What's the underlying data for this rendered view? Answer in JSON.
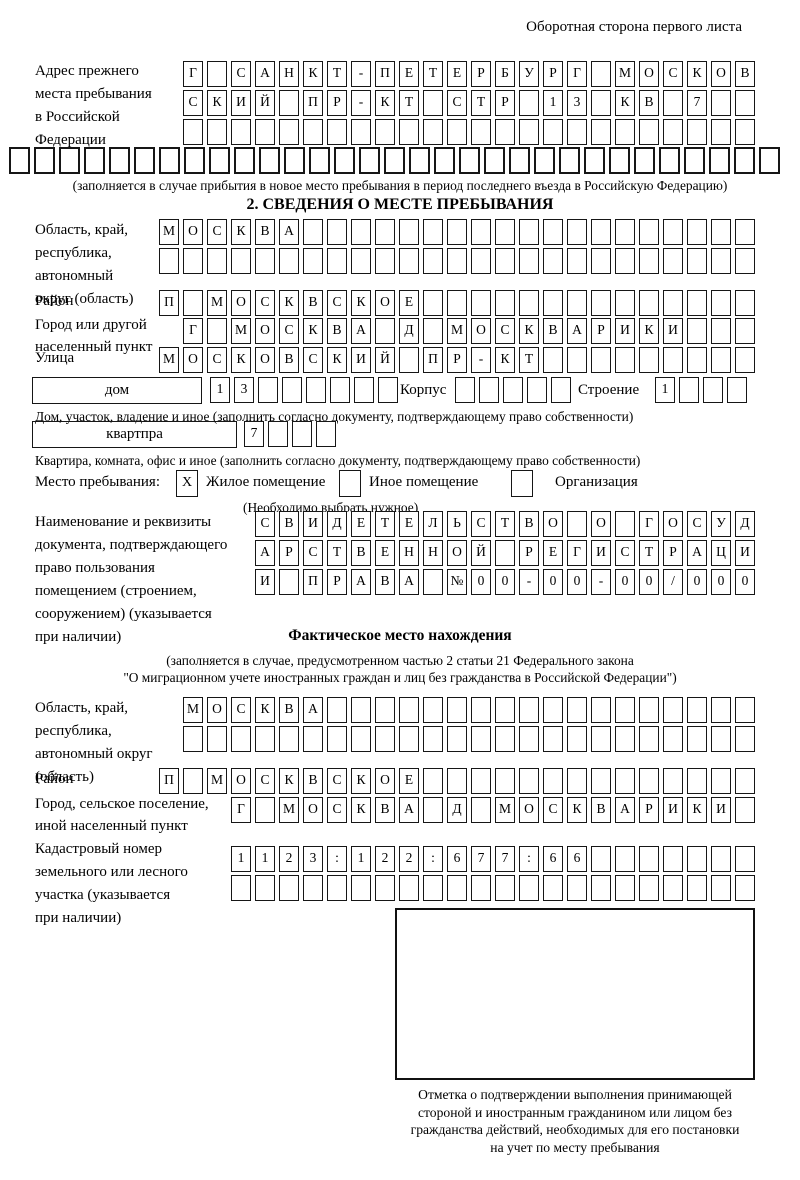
{
  "page": {
    "back_note": "Оборотная сторона первого листа"
  },
  "prev_address": {
    "label": "Адрес прежнего\nместа пребывания\nв Российской\nФедерации",
    "row1": {
      "len": 24,
      "text": "Г САНКТ-ПЕТЕРБУРГ МОСКОВ"
    },
    "row2": {
      "len": 24,
      "text": "СКИЙ ПР-КТ СТР 13 КВ 7"
    },
    "row3": {
      "len": 24,
      "text": ""
    },
    "row4": {
      "len": 31,
      "text": ""
    },
    "caption": "(заполняется в случае прибытия в новое место пребывания в период последнего въезда в Российскую Федерацию)"
  },
  "section2": {
    "title": "2. СВЕДЕНИЯ О МЕСТЕ ПРЕБЫВАНИЯ",
    "oblast": {
      "label": "Область, край,\nреспублика,\nавтономный\nокруг (область)",
      "row1": {
        "len": 25,
        "text": "МОСКВА"
      },
      "row2": {
        "len": 25,
        "text": ""
      }
    },
    "rayon": {
      "label": "Район",
      "row": {
        "len": 25,
        "text": "П МОСКВСКОЕ"
      }
    },
    "gorod": {
      "label": "Город или другой\nнаселенный пункт",
      "row": {
        "len": 24,
        "text": "Г МОСКВА Д МОСКВАРИКИ"
      }
    },
    "ulitsa": {
      "label": "Улица",
      "row": {
        "len": 25,
        "text": "МОСКОВСКИЙ ПР-КТ"
      }
    },
    "dom": {
      "label": "дом",
      "cells": {
        "len": 8,
        "text": "13"
      },
      "korpus_label": "Корпус",
      "korpus_cells": {
        "len": 5,
        "text": ""
      },
      "stroenie_label": "Строение",
      "stroenie_cells": {
        "len": 4,
        "text": "1"
      },
      "caption": "Дом, участок, владение и иное (заполнить согласно документу, подтверждающему право собственности)"
    },
    "kvartira": {
      "label": "квартпра",
      "cells": {
        "len": 4,
        "text": "7"
      },
      "caption": "Квартира, комната, офис и иное (заполнить согласно документу, подтверждающему право собственности)"
    },
    "residence": {
      "label": "Место пребывания:",
      "opt1_mark": "X",
      "opt1": "Жилое помещение",
      "opt2_mark": "",
      "opt2": "Иное помещение",
      "opt3_mark": "",
      "opt3": "Организация",
      "note": "(Необходимо выбрать нужное)"
    },
    "doc": {
      "label": "Наименование и реквизиты\nдокумента, подтверждающего\nправо пользования\nпомещением (строением,\nсооружением) (указывается\nпри наличии)",
      "row1": {
        "len": 21,
        "text": "СВИДЕТЕЛЬСТВО О ГОСУД"
      },
      "row2": {
        "len": 21,
        "text": "АРСТВЕННОЙ РЕГИСТРАЦИ"
      },
      "row3": {
        "len": 21,
        "text": "И ПРАВА №00-00-00/000"
      }
    }
  },
  "fact": {
    "title": "Фактическое место нахождения",
    "caption1": "(заполняется в случае, предусмотренном частью 2 статьи 21 Федерального закона",
    "caption2": "\"О миграционном учете иностранных граждан и лиц без гражданства в Российской Федерации\")",
    "oblast": {
      "label": "Область, край,\nреспублика,\nавтономный округ\n(область)",
      "row1": {
        "len": 24,
        "text": "МОСКВА"
      },
      "row2": {
        "len": 24,
        "text": ""
      }
    },
    "rayon": {
      "label": "Район",
      "row": {
        "len": 25,
        "text": "П МОСКВСКОЕ"
      }
    },
    "gorod": {
      "label": "Город, сельское поселение,\nиной населенный пункт",
      "row": {
        "len": 22,
        "text": "Г МОСКВА Д МОСКВАРИКИ"
      }
    },
    "kadastr": {
      "label": "Кадастровый номер\nземельного или лесного\nучастка (указывается\nпри наличии)",
      "row1": {
        "len": 22,
        "text": "1123:122:677:66"
      },
      "row2": {
        "len": 22,
        "text": ""
      }
    },
    "stamp_caption": "Отметка о подтверждении выполнения принимающей\nстороной и иностранным гражданином или лицом без\nгражданства действий, необходимых для его постановки\nна учет по месту пребывания"
  }
}
